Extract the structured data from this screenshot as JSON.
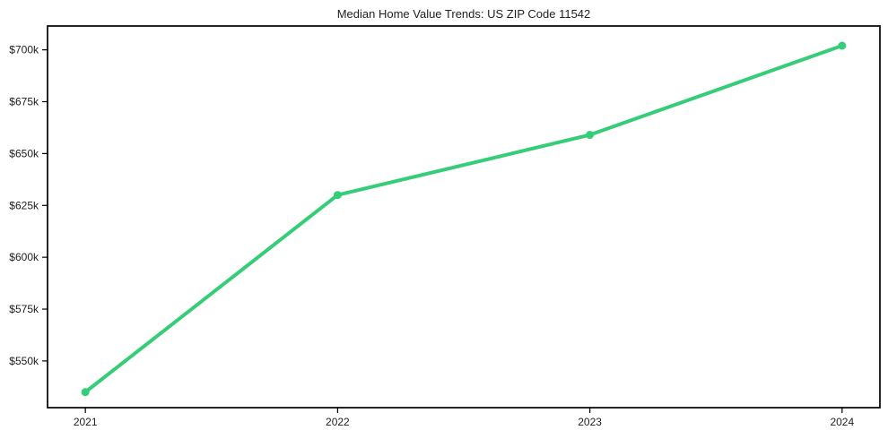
{
  "page": {
    "title": "Median Home Value Trends: US ZIP Code 11542"
  },
  "chart_data": {
    "type": "line",
    "title": "Median Home Value Trends: US ZIP Code 11542",
    "x": [
      2021,
      2022,
      2023,
      2024
    ],
    "xtick_labels": [
      "2021",
      "2022",
      "2023",
      "2024"
    ],
    "series": [
      {
        "name": "median-home-value",
        "unit": "thousand USD",
        "values": [
          535,
          630,
          659,
          702
        ]
      }
    ],
    "ytick_values": [
      550,
      575,
      600,
      625,
      650,
      675,
      700
    ],
    "ytick_labels": [
      "$550k",
      "$575k",
      "$600k",
      "$625k",
      "$650k",
      "$675k",
      "$700k"
    ],
    "xlim": [
      2020.85,
      2024.15
    ],
    "ylim": [
      527.5,
      711.5
    ],
    "grid": false,
    "legend": "none",
    "marker": "circle",
    "line_color": "#35cd78",
    "axis_color": "#000000",
    "text_color": "#1f1f1f",
    "background_color": "#ffffff"
  }
}
